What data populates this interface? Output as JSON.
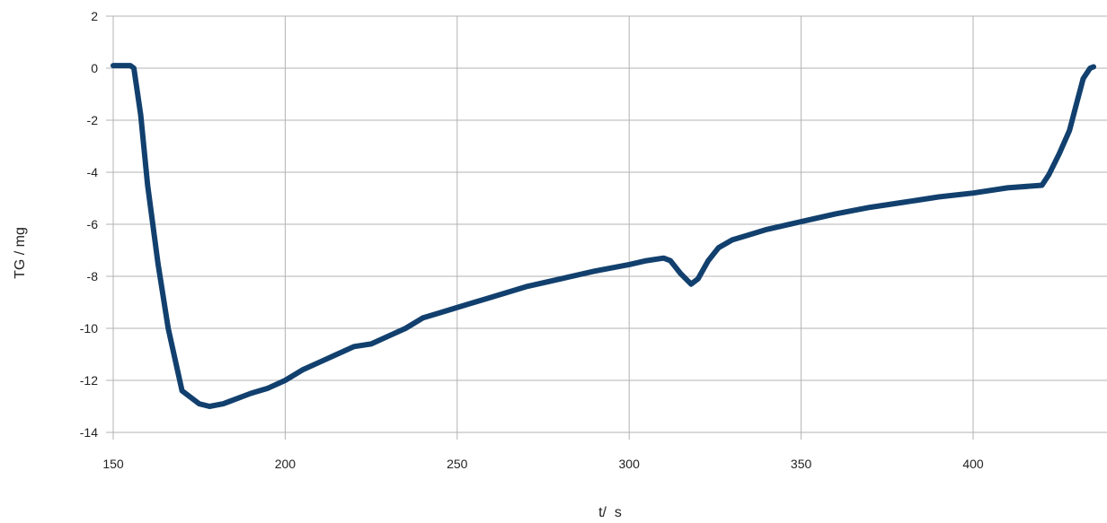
{
  "chart_data": {
    "type": "line",
    "title": "",
    "xlabel": "t/  s",
    "ylabel": "TG / mg",
    "xlim": [
      150,
      435
    ],
    "ylim": [
      -14,
      2
    ],
    "x_ticks": [
      150,
      200,
      250,
      300,
      350,
      400
    ],
    "y_ticks": [
      2,
      0,
      -2,
      -4,
      -6,
      -8,
      -10,
      -12,
      -14
    ],
    "x_tick_labels": [
      "150",
      "200",
      "250",
      "300",
      "350",
      "400"
    ],
    "y_tick_labels": [
      "2",
      "0",
      "-2",
      "-4",
      "-6",
      "-8",
      "-10",
      "-12",
      "-14"
    ],
    "grid": true,
    "legend": "none",
    "series": [
      {
        "color": "#12406e",
        "x": [
          150,
          155,
          156,
          158,
          160,
          163,
          166,
          170,
          175,
          178,
          182,
          186,
          190,
          195,
          200,
          205,
          210,
          215,
          220,
          225,
          230,
          235,
          240,
          245,
          250,
          255,
          260,
          270,
          280,
          290,
          300,
          305,
          310,
          312,
          315,
          318,
          320,
          323,
          326,
          330,
          335,
          340,
          350,
          360,
          370,
          380,
          390,
          400,
          410,
          420,
          422,
          425,
          428,
          430,
          432,
          434,
          435
        ],
        "y": [
          0.1,
          0.1,
          0.0,
          -1.8,
          -4.5,
          -7.5,
          -10.0,
          -12.4,
          -12.9,
          -13.0,
          -12.9,
          -12.7,
          -12.5,
          -12.3,
          -12.0,
          -11.6,
          -11.3,
          -11.0,
          -10.7,
          -10.6,
          -10.3,
          -10.0,
          -9.6,
          -9.4,
          -9.2,
          -9.0,
          -8.8,
          -8.4,
          -8.1,
          -7.8,
          -7.55,
          -7.4,
          -7.3,
          -7.4,
          -7.9,
          -8.3,
          -8.1,
          -7.4,
          -6.9,
          -6.6,
          -6.4,
          -6.2,
          -5.9,
          -5.6,
          -5.35,
          -5.15,
          -4.95,
          -4.8,
          -4.6,
          -4.5,
          -4.1,
          -3.3,
          -2.4,
          -1.4,
          -0.4,
          0.0,
          0.05
        ]
      }
    ]
  }
}
